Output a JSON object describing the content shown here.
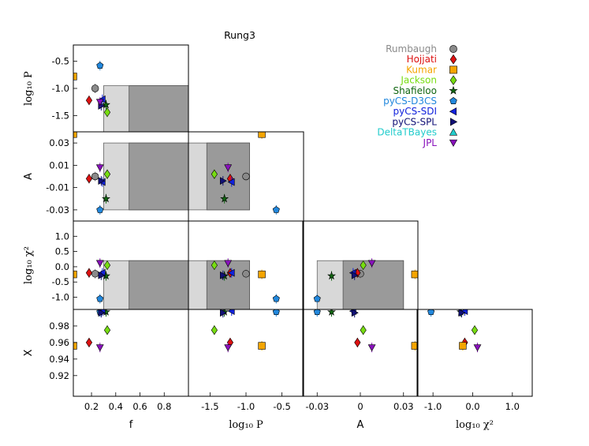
{
  "chart_data": {
    "type": "scatter",
    "subtype": "corner-plot",
    "title": "Rung3",
    "parameters": [
      "f",
      "log10P",
      "A",
      "log10chi2",
      "X"
    ],
    "axis_labels": {
      "f": {
        "text": "f",
        "math": false
      },
      "log10P": {
        "text": "log₁₀ P",
        "math": true
      },
      "A": {
        "text": "A",
        "math": false
      },
      "log10chi2": {
        "text": "log₁₀ χ²",
        "math": true
      },
      "X": {
        "text": "X",
        "math": false
      }
    },
    "ranges": {
      "f": [
        0.05,
        1.0
      ],
      "log10P": [
        -1.8,
        -0.2
      ],
      "A": [
        -0.04,
        0.04
      ],
      "log10chi2": [
        -1.4,
        1.5
      ],
      "X": [
        0.895,
        1.0
      ]
    },
    "ticks": {
      "f": {
        "values": [
          0.2,
          0.4,
          0.6,
          0.8
        ],
        "labels": [
          "0.2",
          "0.4",
          "0.6",
          "0.8"
        ]
      },
      "log10P": {
        "values": [
          -1.5,
          -1.0,
          -0.5
        ],
        "labels": [
          "-1.5",
          "-1.0",
          "-0.5"
        ]
      },
      "A": {
        "values": [
          -0.03,
          0.0,
          0.03
        ],
        "labels": [
          "-0.03",
          "0",
          "0.03"
        ]
      },
      "A_y": {
        "values": [
          -0.03,
          -0.01,
          0.01,
          0.03
        ],
        "labels": [
          "-0.03",
          "-0.01",
          "0.01",
          "0.03"
        ]
      },
      "log10chi2": {
        "values": [
          -1.0,
          0.0,
          1.0
        ],
        "labels": [
          "-1.0",
          "0.0",
          "1.0"
        ]
      },
      "log10chi2_y": {
        "values": [
          -1.0,
          -0.5,
          0.0,
          0.5,
          1.0
        ],
        "labels": [
          "-1.0",
          "-0.5",
          "0.0",
          "0.5",
          "1.0"
        ]
      },
      "X_y": {
        "values": [
          0.92,
          0.94,
          0.96,
          0.98
        ],
        "labels": [
          "0.92",
          "0.94",
          "0.96",
          "0.98"
        ]
      },
      "log10P_y": {
        "values": [
          -1.5,
          -1.0,
          -0.5
        ],
        "labels": [
          "-1.5",
          "-1.0",
          "-0.5"
        ]
      }
    },
    "target_box": {
      "f": [
        0.3,
        1.0
      ],
      "log10P": [
        -1.8,
        -0.95
      ],
      "A": [
        -0.03,
        0.03
      ],
      "log10chi2": [
        -1.4,
        0.2
      ]
    },
    "series": [
      {
        "name": "Rumbaugh",
        "color": "#8a8a8a",
        "marker": "circle",
        "values": {
          "f": 0.23,
          "log10P": -1.0,
          "A": 0.0,
          "log10chi2": -0.23,
          "X": null
        }
      },
      {
        "name": "Hojjati",
        "color": "#dd1111",
        "marker": "diamond",
        "values": {
          "f": 0.18,
          "log10P": -1.22,
          "A": -0.002,
          "log10chi2": -0.2,
          "X": 0.96
        }
      },
      {
        "name": "Kumar",
        "color": "#f5a500",
        "marker": "square",
        "values": {
          "f": 0.05,
          "log10P": -0.78,
          "A": 0.038,
          "log10chi2": -0.25,
          "X": 0.956
        }
      },
      {
        "name": "Jackson",
        "color": "#77dd11",
        "marker": "diamond",
        "values": {
          "f": 0.33,
          "log10P": -1.44,
          "A": 0.002,
          "log10chi2": 0.05,
          "X": 0.975
        }
      },
      {
        "name": "Shafieloo",
        "color": "#116611",
        "marker": "star",
        "values": {
          "f": 0.32,
          "log10P": -1.3,
          "A": -0.02,
          "log10chi2": -0.3,
          "X": 0.997
        }
      },
      {
        "name": "pyCS-D3CS",
        "color": "#2288dd",
        "marker": "pentagon",
        "values": {
          "f": 0.27,
          "log10P": -0.58,
          "A": -0.03,
          "log10chi2": -1.05,
          "X": 0.997
        }
      },
      {
        "name": "pyCS-SDI",
        "color": "#1122dd",
        "marker": "triangle-left",
        "values": {
          "f": 0.29,
          "log10P": -1.2,
          "A": -0.005,
          "log10chi2": -0.2,
          "X": 0.998
        }
      },
      {
        "name": "pyCS-SPL",
        "color": "#111177",
        "marker": "triangle-right",
        "values": {
          "f": 0.28,
          "log10P": -1.32,
          "A": -0.004,
          "log10chi2": -0.28,
          "X": 0.996
        }
      },
      {
        "name": "DeltaTBayes",
        "color": "#22cccc",
        "marker": "triangle-up",
        "values": {
          "f": null,
          "log10P": null,
          "A": null,
          "log10chi2": null,
          "X": null
        }
      },
      {
        "name": "JPL",
        "color": "#8811bb",
        "marker": "triangle-down",
        "values": {
          "f": 0.27,
          "log10P": -1.25,
          "A": 0.008,
          "log10chi2": 0.12,
          "X": 0.954
        }
      }
    ],
    "legend": {
      "position": "top-right"
    }
  }
}
